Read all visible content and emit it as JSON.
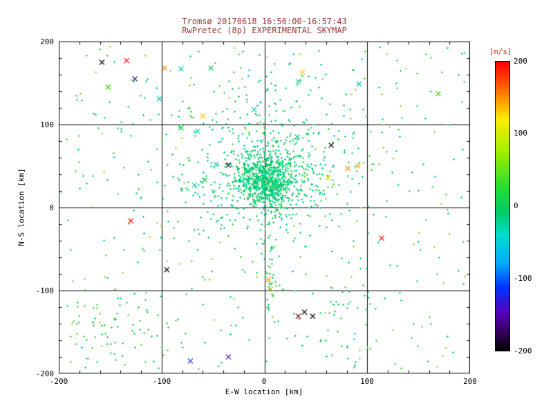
{
  "chart_data": {
    "type": "scatter",
    "title_line1": "Tromsø 20170618 16:56:00-16:57:43",
    "title_line2": "RwPretec (8p) EXPERIMENTAL SKYMAP",
    "xlabel": "E-W location [km]",
    "ylabel": "N-S location [km]",
    "xlim": [
      -200,
      200
    ],
    "ylim": [
      -200,
      200
    ],
    "grid": true,
    "grid_lines_x": [
      -100,
      0,
      100
    ],
    "grid_lines_y": [
      -100,
      0,
      100
    ],
    "x_tick_labels": [
      "-200",
      "-100",
      "0",
      "100",
      "200"
    ],
    "y_tick_labels": [
      "200",
      "100",
      "0",
      "-100",
      "-200"
    ],
    "background": "#ffffff",
    "axis_color": "#000000",
    "title_color": "#993333",
    "seed": 20170618,
    "colorbar": {
      "label": "[m/s]",
      "min": -200,
      "max": 200,
      "tick_labels": [
        "200",
        "100",
        "0",
        "-100",
        "-200"
      ],
      "stops": [
        [
          "0%",
          "#ff0000"
        ],
        [
          "8%",
          "#ff5500"
        ],
        [
          "20%",
          "#ffee00"
        ],
        [
          "32%",
          "#99ee00"
        ],
        [
          "44%",
          "#22dd33"
        ],
        [
          "52%",
          "#00cc66"
        ],
        [
          "60%",
          "#00ddcc"
        ],
        [
          "70%",
          "#00aaff"
        ],
        [
          "78%",
          "#0033ff"
        ],
        [
          "87%",
          "#5500bb"
        ],
        [
          "94%",
          "#330055"
        ],
        [
          "100%",
          "#000000"
        ]
      ]
    },
    "dot_clusters": [
      {
        "name": "dense-core",
        "cx": 3,
        "cy": 32,
        "sx": 14,
        "sy": 16,
        "count": 700,
        "palette": [
          "#00d973",
          "#00c46a",
          "#16e07f",
          "#00cc88"
        ]
      },
      {
        "name": "core-halo",
        "cx": 2,
        "cy": 35,
        "sx": 35,
        "sy": 32,
        "count": 380,
        "palette": [
          "#00d973",
          "#2ecc40",
          "#00cc88"
        ]
      },
      {
        "name": "broad-halo",
        "cx": -10,
        "cy": 60,
        "sx": 90,
        "sy": 60,
        "count": 250,
        "palette": [
          "#00cf6e",
          "#3ccf3c",
          "#00c9a0"
        ]
      },
      {
        "name": "north-column",
        "cx": 8,
        "cy": 120,
        "sx": 25,
        "sy": 45,
        "count": 60,
        "palette": [
          "#00cf6e",
          "#2ecc40",
          "#00c9a0"
        ]
      },
      {
        "name": "field-uniform",
        "uniform": true,
        "xmin": -195,
        "xmax": 195,
        "ymin": -195,
        "ymax": 195,
        "count": 300,
        "palette": [
          "#00cf6e",
          "#46d146",
          "#9ccf2e",
          "#00c9a0"
        ]
      },
      {
        "name": "southwest-patch",
        "cx": -150,
        "cy": -150,
        "sx": 38,
        "sy": 32,
        "count": 90,
        "palette": [
          "#2ecc40",
          "#00cf6e",
          "#58d832"
        ]
      },
      {
        "name": "south-streak",
        "cx": 5,
        "cy": -65,
        "sx": 4,
        "sy": 30,
        "count": 40,
        "palette": [
          "#00cf6e",
          "#2ecc40"
        ]
      },
      {
        "name": "southeast-patch",
        "cx": 70,
        "cy": -140,
        "sx": 40,
        "sy": 35,
        "count": 45,
        "palette": [
          "#00cf6e",
          "#2ecc40"
        ]
      }
    ],
    "x_markers": [
      {
        "x": -134,
        "y": 177,
        "c": "#ff0000"
      },
      {
        "x": -158,
        "y": 175,
        "c": "#111111"
      },
      {
        "x": -97,
        "y": 168,
        "c": "#ff8800"
      },
      {
        "x": -81,
        "y": 167,
        "c": "#00ccaa"
      },
      {
        "x": -52,
        "y": 168,
        "c": "#00cc44"
      },
      {
        "x": 37,
        "y": 163,
        "c": "#ffcc00"
      },
      {
        "x": 33,
        "y": 152,
        "c": "#00ccaa"
      },
      {
        "x": 92,
        "y": 149,
        "c": "#00ccaa"
      },
      {
        "x": -152,
        "y": 145,
        "c": "#44cc00"
      },
      {
        "x": -126,
        "y": 155,
        "c": "#3a2080"
      },
      {
        "x": -102,
        "y": 131,
        "c": "#00ccaa"
      },
      {
        "x": 169,
        "y": 137,
        "c": "#44cc00"
      },
      {
        "x": -81,
        "y": 96,
        "c": "#00cc44"
      },
      {
        "x": -65,
        "y": 92,
        "c": "#00ccaa"
      },
      {
        "x": -60,
        "y": 110,
        "c": "#ffcc00"
      },
      {
        "x": 32,
        "y": 85,
        "c": "#00ccaa"
      },
      {
        "x": 65,
        "y": 75,
        "c": "#111111"
      },
      {
        "x": 81,
        "y": 47,
        "c": "#ff8800"
      },
      {
        "x": 91,
        "y": 50,
        "c": "#ffaa00"
      },
      {
        "x": 62,
        "y": 36,
        "c": "#dddd00"
      },
      {
        "x": -47,
        "y": 52,
        "c": "#00ccaa"
      },
      {
        "x": -35,
        "y": 51,
        "c": "#222222"
      },
      {
        "x": -58,
        "y": 33,
        "c": "#00cc44"
      },
      {
        "x": -68,
        "y": 27,
        "c": "#00ccaa"
      },
      {
        "x": -10,
        "y": 118,
        "c": "#00ccaa"
      },
      {
        "x": 114,
        "y": -37,
        "c": "#ff0000"
      },
      {
        "x": -130,
        "y": -16,
        "c": "#ff2200"
      },
      {
        "x": -95,
        "y": -75,
        "c": "#111111"
      },
      {
        "x": 4,
        "y": -87,
        "c": "#ff8800"
      },
      {
        "x": 6,
        "y": -98,
        "c": "#aacc00"
      },
      {
        "x": 39,
        "y": -126,
        "c": "#111111"
      },
      {
        "x": 47,
        "y": -131,
        "c": "#111111"
      },
      {
        "x": 33,
        "y": -131,
        "c": "#881111"
      },
      {
        "x": -72,
        "y": -185,
        "c": "#2244ff"
      },
      {
        "x": -35,
        "y": -180,
        "c": "#6622aa"
      }
    ]
  }
}
